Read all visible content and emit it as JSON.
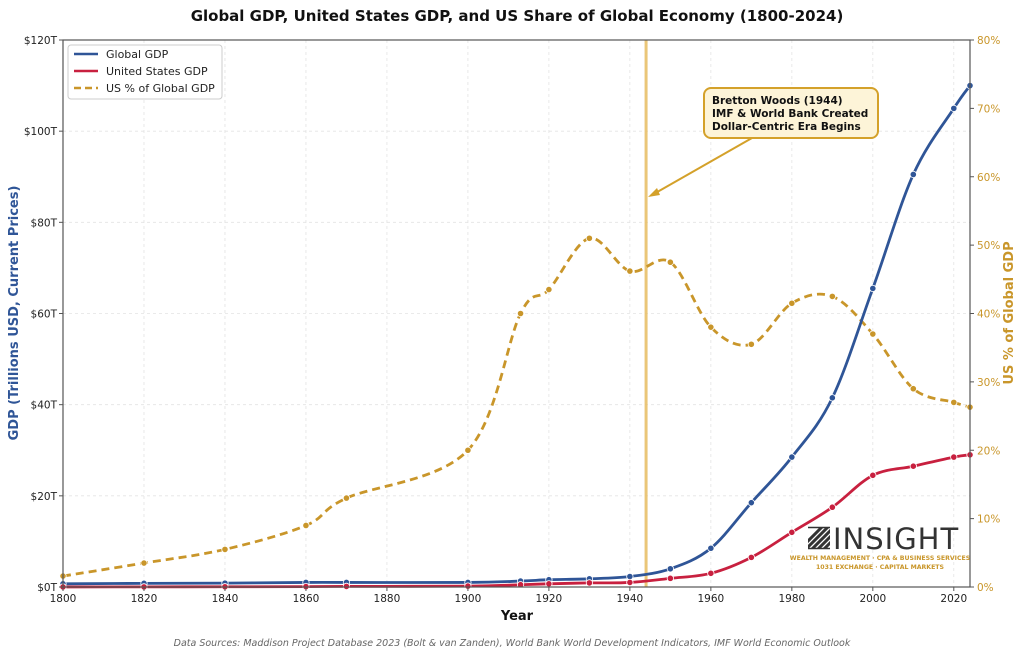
{
  "chart_data": {
    "type": "line",
    "title": "Global GDP, United States GDP, and US Share of Global Economy (1800-2024)",
    "xlabel": "Year",
    "ylabel": "GDP (Trillions USD, Current Prices)",
    "ylabel_right": "US % of Global GDP",
    "xlim": [
      1800,
      2024
    ],
    "ylim": [
      0,
      120
    ],
    "ylim_right": [
      0,
      80
    ],
    "x_ticks": [
      1800,
      1820,
      1840,
      1860,
      1880,
      1900,
      1920,
      1940,
      1960,
      1980,
      2000,
      2020
    ],
    "x_tick_labels": [
      "1800",
      "1820",
      "1840",
      "1860",
      "1880",
      "1900",
      "1920",
      "1940",
      "1960",
      "1980",
      "2000",
      "2020"
    ],
    "y_ticks": [
      0,
      20,
      40,
      60,
      80,
      100,
      120
    ],
    "y_tick_labels": [
      "$0T",
      "$20T",
      "$40T",
      "$60T",
      "$80T",
      "$100T",
      "$120T"
    ],
    "y_right_ticks": [
      0,
      10,
      20,
      30,
      40,
      50,
      60,
      70,
      80
    ],
    "y_right_tick_labels": [
      "0%",
      "10%",
      "20%",
      "30%",
      "40%",
      "50%",
      "60%",
      "70%",
      "80%"
    ],
    "grid": true,
    "legend_position": "top-left",
    "x": [
      1800,
      1820,
      1840,
      1860,
      1870,
      1900,
      1913,
      1920,
      1930,
      1940,
      1950,
      1960,
      1970,
      1980,
      1990,
      2000,
      2010,
      2020,
      2024
    ],
    "series": [
      {
        "name": "Global GDP",
        "axis": "left",
        "color": "#2f5597",
        "style": "solid",
        "values": [
          0.7,
          0.8,
          0.85,
          1.0,
          1.0,
          1.0,
          1.3,
          1.6,
          1.8,
          2.3,
          4.0,
          8.5,
          18.5,
          28.5,
          41.5,
          65.5,
          90.5,
          105.0,
          110.0
        ]
      },
      {
        "name": "United States GDP",
        "axis": "left",
        "color": "#c8203f",
        "style": "solid",
        "values": [
          0.01,
          0.03,
          0.05,
          0.09,
          0.13,
          0.2,
          0.5,
          0.7,
          0.9,
          1.0,
          1.9,
          3.0,
          6.5,
          12.0,
          17.5,
          24.5,
          26.5,
          28.5,
          29.0
        ]
      },
      {
        "name": "US % of Global GDP",
        "axis": "right",
        "color": "#c9962a",
        "style": "dashed",
        "values": [
          1.6,
          3.5,
          5.5,
          9.0,
          13.0,
          20.0,
          40.0,
          43.5,
          51.0,
          46.2,
          47.5,
          38.0,
          35.5,
          41.5,
          42.5,
          37.0,
          29.0,
          27.0,
          26.3
        ]
      }
    ],
    "annotations": [
      {
        "type": "vertical-line",
        "x": 1944,
        "color": "#e8c069"
      },
      {
        "type": "callout",
        "x": 1944,
        "y_right": 57,
        "lines": [
          "Bretton Woods (1944)",
          "IMF & World Bank Created",
          "Dollar-Centric Era Begins"
        ]
      }
    ],
    "source": "Data Sources: Maddison Project Database 2023 (Bolt & van Zanden), World Bank World Development Indicators, IMF World Economic Outlook"
  },
  "logo": {
    "word": "INSIGHT",
    "line1": "WEALTH MANAGEMENT  ·  CPA & BUSINESS SERVICES",
    "line2": "1031 EXCHANGE  ·  CAPITAL MARKETS"
  }
}
